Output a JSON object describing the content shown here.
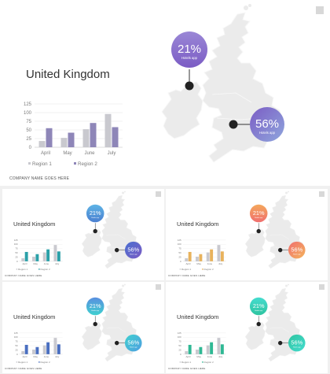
{
  "company_text": "COMPANY NAME GOES HERE",
  "slides": [
    {
      "title": "United Kingdom",
      "bubble_top": {
        "value": "21%",
        "label": "Hotels app"
      },
      "bubble_bottom": {
        "value": "56%",
        "label": "Hotels app"
      },
      "colors": {
        "bubble_top": [
          "#7b5cc4",
          "#9a87d6"
        ],
        "bubble_bottom": [
          "#7b5cc4",
          "#8fa6dd"
        ],
        "series2": "#8e86b8",
        "series1": "#c9c9cf",
        "dot": "#222222"
      }
    },
    {
      "title": "United Kingdom",
      "bubble_top": {
        "value": "21%",
        "label": "Hotels app"
      },
      "bubble_bottom": {
        "value": "56%",
        "label": "Hotels app"
      },
      "colors": {
        "bubble_top": [
          "#4a7fd0",
          "#5fb4e6"
        ],
        "bubble_bottom": [
          "#4a6fd0",
          "#7b5cc4"
        ],
        "series2": "#2aa0a8",
        "series1": "#c9c9cf",
        "dot": "#222222"
      }
    },
    {
      "title": "United Kingdom",
      "bubble_top": {
        "value": "21%",
        "label": "Hotels app"
      },
      "bubble_bottom": {
        "value": "56%",
        "label": "Hotels app"
      },
      "colors": {
        "bubble_top": [
          "#f06f6f",
          "#f4a85c"
        ],
        "bubble_bottom": [
          "#f06f6f",
          "#f4b45c"
        ],
        "series2": "#e8b25c",
        "series1": "#c9c9cf",
        "dot": "#222222"
      }
    },
    {
      "title": "United Kingdom",
      "bubble_top": {
        "value": "21%",
        "label": "Hotels app"
      },
      "bubble_bottom": {
        "value": "56%",
        "label": "Hotels app"
      },
      "colors": {
        "bubble_top": [
          "#3fd0d0",
          "#5a8fe0"
        ],
        "bubble_bottom": [
          "#3fd0d0",
          "#4f9ee0"
        ],
        "series2": "#4a6fc0",
        "series1": "#c9c9cf",
        "dot": "#222222"
      }
    },
    {
      "title": "United Kingdom",
      "bubble_top": {
        "value": "21%",
        "label": "Hotels app"
      },
      "bubble_bottom": {
        "value": "56%",
        "label": "Hotels app"
      },
      "colors": {
        "bubble_top": [
          "#2ec4a0",
          "#45dccf"
        ],
        "bubble_bottom": [
          "#2ec4a0",
          "#45dccf"
        ],
        "series2": "#2fb894",
        "series1": "#c9c9cf",
        "dot": "#222222"
      }
    }
  ],
  "chart_data": {
    "type": "bar",
    "categories": [
      "April",
      "May",
      "June",
      "July"
    ],
    "series": [
      {
        "name": "Region 1",
        "values": [
          18,
          27,
          52,
          96
        ]
      },
      {
        "name": "Region 2",
        "values": [
          55,
          42,
          70,
          58
        ]
      }
    ],
    "yticks": [
      "0",
      "25",
      "50",
      "75",
      "100",
      "125"
    ],
    "ylim": [
      0,
      125
    ],
    "legend": "bottom"
  }
}
